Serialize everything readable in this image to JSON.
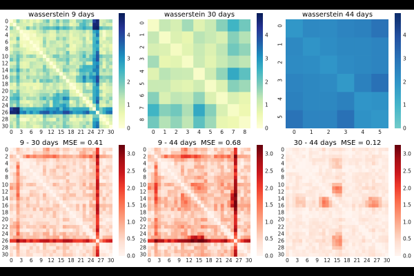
{
  "figure": {
    "background": "#ffffff",
    "letterbox_color": "#000000",
    "tick_color": "#151515",
    "title_color": "#000000"
  },
  "colormaps": {
    "ylgnbu": [
      "#ffffd9",
      "#edf8b1",
      "#c7e9b4",
      "#7fcdbb",
      "#41b6c4",
      "#1d91c0",
      "#225ea8",
      "#253494",
      "#081d58"
    ],
    "reds": [
      "#fff5f0",
      "#fee0d2",
      "#fcbba1",
      "#fc9272",
      "#fb6a4a",
      "#ef3b2c",
      "#cb181d",
      "#a50f15",
      "#67000d"
    ],
    "tealblue": [
      "#72cbc9",
      "#45b5c9",
      "#3096c8",
      "#2a74b8",
      "#2350a0",
      "#0d2d6b"
    ]
  },
  "chart_data": [
    {
      "type": "heatmap",
      "title": "wasserstein 9 days",
      "n": 31,
      "vmax": 4.95,
      "cmap": "ylgnbu",
      "rotate_yticks": false,
      "yticks": [
        0,
        2,
        4,
        6,
        8,
        10,
        12,
        14,
        16,
        18,
        20,
        22,
        24,
        26,
        28,
        30
      ],
      "xticks": [
        0,
        3,
        6,
        9,
        12,
        15,
        18,
        21,
        24,
        27,
        30
      ],
      "cticks": [
        {
          "v": 0,
          "t": "0"
        },
        {
          "v": 1,
          "t": "1"
        },
        {
          "v": 2,
          "t": "2"
        },
        {
          "v": 3,
          "t": "3"
        },
        {
          "v": 4,
          "t": "4"
        }
      ],
      "matrix_spec": {
        "profile": [
          2,
          2,
          4,
          1,
          1,
          1,
          1,
          1,
          1,
          2,
          3,
          3,
          2,
          2,
          3,
          2,
          3,
          3,
          1,
          1,
          2,
          2,
          3,
          2,
          2,
          6,
          8,
          2,
          1,
          2,
          2
        ],
        "scale": 0.33,
        "jitter": 0.45,
        "blocks": [
          [
            13,
            17,
            21,
            24,
            0.9
          ],
          [
            25,
            26,
            0,
            2,
            1.0
          ],
          [
            0,
            2,
            25,
            26,
            0.6
          ],
          [
            21,
            23,
            0,
            2,
            0.5
          ]
        ]
      }
    },
    {
      "type": "heatmap",
      "title": "wasserstein 30 days",
      "n": 9,
      "vmax": 4.95,
      "cmap": "ylgnbu",
      "rotate_yticks": true,
      "yticks": [
        0,
        1,
        2,
        3,
        4,
        5,
        6,
        7,
        8
      ],
      "xticks": [
        0,
        1,
        2,
        3,
        4,
        5,
        6,
        7,
        8
      ],
      "cticks": [
        {
          "v": 0,
          "t": "0"
        },
        {
          "v": 1,
          "t": "1"
        },
        {
          "v": 2,
          "t": "2"
        },
        {
          "v": 3,
          "t": "3"
        },
        {
          "v": 4,
          "t": "4"
        }
      ],
      "matrix": [
        [
          0.3,
          1.25,
          1.0,
          1.55,
          0.85,
          1.2,
          1.8,
          2.5,
          2.0
        ],
        [
          1.25,
          0.3,
          0.9,
          0.7,
          1.35,
          1.2,
          0.95,
          1.8,
          1.4
        ],
        [
          1.0,
          0.9,
          0.35,
          0.8,
          1.2,
          0.9,
          1.3,
          2.0,
          1.7
        ],
        [
          1.55,
          0.7,
          0.8,
          0.3,
          1.15,
          0.8,
          1.2,
          1.45,
          1.3
        ],
        [
          0.85,
          1.35,
          1.2,
          1.15,
          0.25,
          1.1,
          1.7,
          2.7,
          2.2
        ],
        [
          1.2,
          1.2,
          0.9,
          0.8,
          1.1,
          0.3,
          0.9,
          1.8,
          1.6
        ],
        [
          1.8,
          0.95,
          1.3,
          1.2,
          1.7,
          0.9,
          0.3,
          0.95,
          0.7
        ],
        [
          2.5,
          1.8,
          2.0,
          1.45,
          2.7,
          1.8,
          0.95,
          0.3,
          0.6
        ],
        [
          2.0,
          1.4,
          1.7,
          1.3,
          2.2,
          1.6,
          0.7,
          0.6,
          0.25
        ]
      ]
    },
    {
      "type": "heatmap",
      "title": "wasserstein 44 days",
      "n": 6,
      "vmax": 4.95,
      "cmap": "tealblue",
      "rotate_yticks": true,
      "yticks": [
        0,
        1,
        2,
        3,
        4,
        5
      ],
      "xticks": [
        0,
        1,
        2,
        3,
        4,
        5
      ],
      "cticks": [
        {
          "v": 0,
          "t": "0"
        },
        {
          "v": 1,
          "t": "1"
        },
        {
          "v": 2,
          "t": "2"
        },
        {
          "v": 3,
          "t": "3"
        },
        {
          "v": 4,
          "t": "4"
        }
      ],
      "matrix": [
        [
          1.95,
          2.35,
          2.3,
          2.5,
          2.6,
          3.0
        ],
        [
          2.35,
          2.05,
          2.25,
          2.4,
          2.4,
          2.5
        ],
        [
          2.3,
          2.25,
          2.0,
          2.3,
          2.4,
          2.5
        ],
        [
          2.5,
          2.4,
          2.3,
          1.9,
          2.6,
          3.05
        ],
        [
          2.6,
          2.4,
          2.4,
          2.6,
          2.0,
          2.1
        ],
        [
          3.0,
          2.5,
          2.5,
          3.05,
          2.1,
          1.95
        ]
      ]
    },
    {
      "type": "heatmap",
      "title": "9 - 30 days  MSE = 0.41",
      "n": 31,
      "vmax": 3.27,
      "cmap": "reds",
      "rotate_yticks": false,
      "yticks": [
        0,
        2,
        4,
        6,
        8,
        10,
        12,
        14,
        16,
        18,
        20,
        22,
        24,
        26,
        28,
        30
      ],
      "xticks": [
        0,
        3,
        6,
        9,
        12,
        15,
        18,
        21,
        24,
        27,
        30
      ],
      "cticks": [
        {
          "v": 0,
          "t": "0.0"
        },
        {
          "v": 0.5,
          "t": "0.5"
        },
        {
          "v": 1,
          "t": "1.0"
        },
        {
          "v": 1.5,
          "t": "1.5"
        },
        {
          "v": 2,
          "t": "2.0"
        },
        {
          "v": 2.5,
          "t": "2.5"
        },
        {
          "v": 3,
          "t": "3.0"
        }
      ],
      "matrix_spec": {
        "profile": [
          1,
          1,
          4,
          1,
          1,
          1,
          1,
          1,
          1,
          1,
          2,
          2,
          1,
          2,
          2,
          1,
          2,
          2,
          1,
          1,
          1,
          1,
          2,
          1,
          2,
          3,
          7,
          1,
          1,
          1,
          1
        ],
        "scale": 0.17,
        "jitter": 0.3,
        "blocks": [
          [
            26,
            26,
            0,
            30,
            0.9
          ],
          [
            2,
            2,
            4,
            13,
            0.5
          ],
          [
            2,
            2,
            21,
            24,
            0.5
          ],
          [
            10,
            12,
            0,
            1,
            0.4
          ],
          [
            21,
            23,
            0,
            1,
            0.3
          ]
        ]
      }
    },
    {
      "type": "heatmap",
      "title": "9 - 44 days  MSE = 0.68",
      "n": 31,
      "vmax": 3.27,
      "cmap": "reds",
      "rotate_yticks": false,
      "yticks": [
        0,
        2,
        4,
        6,
        8,
        10,
        12,
        14,
        16,
        18,
        20,
        22,
        24,
        26,
        28,
        30
      ],
      "xticks": [
        0,
        3,
        6,
        9,
        12,
        15,
        18,
        21,
        24,
        27,
        30
      ],
      "cticks": [
        {
          "v": 0,
          "t": "0.0"
        },
        {
          "v": 0.5,
          "t": "0.5"
        },
        {
          "v": 1,
          "t": "1.0"
        },
        {
          "v": 1.5,
          "t": "1.5"
        },
        {
          "v": 2,
          "t": "2.0"
        },
        {
          "v": 2.5,
          "t": "2.5"
        },
        {
          "v": 3,
          "t": "3.0"
        }
      ],
      "matrix_spec": {
        "profile": [
          1,
          1,
          4,
          2,
          1,
          1,
          1,
          1,
          2,
          2,
          3,
          3,
          2,
          2,
          3,
          3,
          3,
          3,
          1,
          1,
          2,
          2,
          3,
          2,
          2,
          3,
          7,
          1,
          1,
          2,
          2
        ],
        "scale": 0.17,
        "jitter": 0.35,
        "blocks": [
          [
            26,
            26,
            0,
            30,
            1.0
          ],
          [
            13,
            16,
            25,
            25,
            0.8
          ],
          [
            2,
            2,
            4,
            15,
            0.5
          ],
          [
            2,
            2,
            20,
            24,
            0.5
          ],
          [
            10,
            12,
            13,
            16,
            0.5
          ],
          [
            12,
            16,
            25,
            26,
            0.6
          ],
          [
            10,
            12,
            0,
            2,
            0.5
          ]
        ]
      }
    },
    {
      "type": "heatmap",
      "title": "30 - 44 days  MSE = 0.12",
      "n": 31,
      "vmax": 3.27,
      "cmap": "reds",
      "rotate_yticks": false,
      "yticks": [
        0,
        2,
        4,
        6,
        8,
        10,
        12,
        14,
        16,
        18,
        20,
        22,
        24,
        26,
        28,
        30
      ],
      "xticks": [
        0,
        3,
        6,
        9,
        12,
        15,
        18,
        21,
        24,
        27,
        30
      ],
      "cticks": [
        {
          "v": 0,
          "t": "0.0"
        },
        {
          "v": 0.5,
          "t": "0.5"
        },
        {
          "v": 1,
          "t": "1.0"
        },
        {
          "v": 1.5,
          "t": "1.5"
        },
        {
          "v": 2,
          "t": "2.0"
        },
        {
          "v": 2.5,
          "t": "2.5"
        },
        {
          "v": 3,
          "t": "3.0"
        }
      ],
      "matrix_spec": {
        "profile": [
          1,
          0,
          1,
          1,
          1,
          0,
          0,
          1,
          1,
          1,
          1,
          2,
          1,
          1,
          1,
          2,
          2,
          1,
          0,
          0,
          1,
          1,
          1,
          1,
          1,
          1,
          2,
          1,
          1,
          1,
          1
        ],
        "scale": 0.11,
        "jitter": 0.18,
        "blocks": [
          [
            10,
            12,
            14,
            16,
            0.6
          ],
          [
            14,
            16,
            11,
            13,
            0.45
          ],
          [
            25,
            27,
            14,
            16,
            0.5
          ],
          [
            14,
            16,
            23,
            28,
            0.25
          ],
          [
            3,
            5,
            13,
            16,
            0.3
          ]
        ]
      }
    }
  ]
}
